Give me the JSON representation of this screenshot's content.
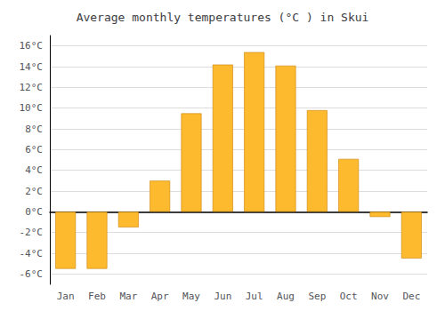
{
  "chart_data": {
    "type": "bar",
    "title": "Average monthly temperatures (°C ) in Skui",
    "categories": [
      "Jan",
      "Feb",
      "Mar",
      "Apr",
      "May",
      "Jun",
      "Jul",
      "Aug",
      "Sep",
      "Oct",
      "Nov",
      "Dec"
    ],
    "values": [
      -5.5,
      -5.5,
      -1.5,
      3.0,
      9.5,
      14.2,
      15.4,
      14.1,
      9.8,
      5.1,
      -0.5,
      -4.5
    ],
    "color": "#FDBA2E",
    "ylim": [
      -7,
      17
    ],
    "yticks": [
      {
        "value": -6,
        "label": "-6°C"
      },
      {
        "value": -4,
        "label": "-4°C"
      },
      {
        "value": -2,
        "label": "-2°C"
      },
      {
        "value": 0,
        "label": "0°C"
      },
      {
        "value": 2,
        "label": "2°C"
      },
      {
        "value": 4,
        "label": "4°C"
      },
      {
        "value": 6,
        "label": "6°C"
      },
      {
        "value": 8,
        "label": "8°C"
      },
      {
        "value": 10,
        "label": "10°C"
      },
      {
        "value": 12,
        "label": "12°C"
      },
      {
        "value": 14,
        "label": "14°C"
      },
      {
        "value": 16,
        "label": "16°C"
      }
    ],
    "grid": true
  }
}
